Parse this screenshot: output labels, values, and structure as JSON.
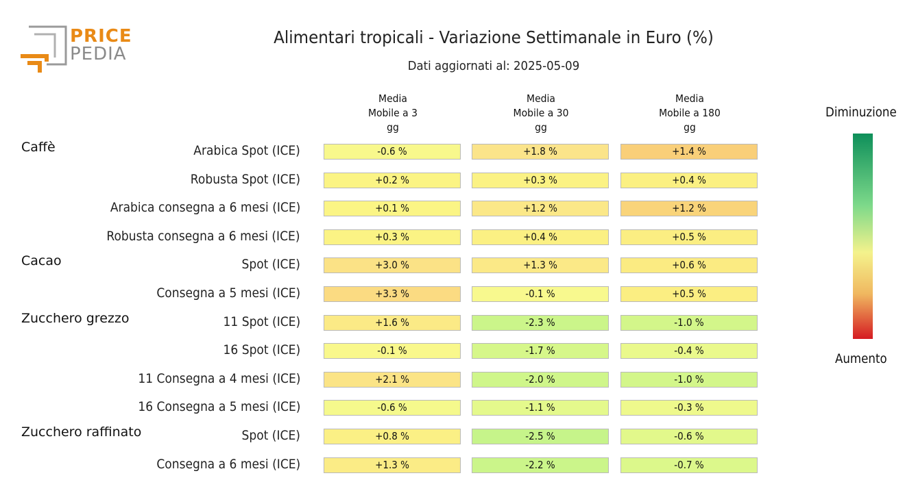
{
  "logo": {
    "line1": "PRICE",
    "line2": "PEDIA"
  },
  "chart_data": {
    "type": "table",
    "title": "Alimentari tropicali - Variazione Settimanale in Euro (%)",
    "subtitle": "Dati aggiornati al: 2025-05-09",
    "columns": [
      "Media\nMobile a 3\ngg",
      "Media\nMobile a 30\ngg",
      "Media\nMobile a 180\ngg"
    ],
    "groups": [
      {
        "name": "Caffè",
        "rows": [
          {
            "label": "Arabica Spot (ICE)",
            "values": [
              "-0.6 %",
              "+1.8 %",
              "+1.4 %"
            ],
            "colors": [
              "#f8f88c",
              "#fbe48a",
              "#f9cf79"
            ]
          },
          {
            "label": "Robusta Spot (ICE)",
            "values": [
              "+0.2 %",
              "+0.3 %",
              "+0.4 %"
            ],
            "colors": [
              "#fbf484",
              "#fbf284",
              "#fbf082"
            ]
          },
          {
            "label": "Arabica consegna a 6 mesi (ICE)",
            "values": [
              "+0.1 %",
              "+1.2 %",
              "+1.2 %"
            ],
            "colors": [
              "#fbf585",
              "#fbe888",
              "#f9d47a"
            ]
          },
          {
            "label": "Robusta consegna a 6 mesi (ICE)",
            "values": [
              "+0.3 %",
              "+0.4 %",
              "+0.5 %"
            ],
            "colors": [
              "#fbf384",
              "#fbf083",
              "#fbee82"
            ]
          }
        ]
      },
      {
        "name": "Cacao",
        "rows": [
          {
            "label": "Spot (ICE)",
            "values": [
              "+3.0 %",
              "+1.3 %",
              "+0.6 %"
            ],
            "colors": [
              "#fbe286",
              "#fbe987",
              "#fbeb82"
            ]
          },
          {
            "label": "Consegna a 5 mesi (ICE)",
            "values": [
              "+3.3 %",
              "-0.1 %",
              "+0.5 %"
            ],
            "colors": [
              "#fbdb82",
              "#f8f98e",
              "#fbee82"
            ]
          }
        ]
      },
      {
        "name": "Zucchero grezzo",
        "rows": [
          {
            "label": "11 Spot (ICE)",
            "values": [
              "+1.6 %",
              "-2.3 %",
              "-1.0 %"
            ],
            "colors": [
              "#fbea86",
              "#cbf58a",
              "#d3f68a"
            ]
          },
          {
            "label": "16 Spot (ICE)",
            "values": [
              "-0.1 %",
              "-1.7 %",
              "-0.4 %"
            ],
            "colors": [
              "#f9f88c",
              "#d6f78a",
              "#eaf98c"
            ]
          },
          {
            "label": "11 Consegna a 4 mesi (ICE)",
            "values": [
              "+2.1 %",
              "-2.0 %",
              "-1.0 %"
            ],
            "colors": [
              "#fbe486",
              "#cff68a",
              "#d3f68a"
            ]
          },
          {
            "label": "16 Consegna a 5 mesi (ICE)",
            "values": [
              "-0.6 %",
              "-1.1 %",
              "-0.3 %"
            ],
            "colors": [
              "#f5f98c",
              "#e4f98c",
              "#eef98c"
            ]
          }
        ]
      },
      {
        "name": "Zucchero raffinato",
        "rows": [
          {
            "label": "Spot (ICE)",
            "values": [
              "+0.8 %",
              "-2.5 %",
              "-0.6 %"
            ],
            "colors": [
              "#fbf085",
              "#c6f48a",
              "#e2f88b"
            ]
          },
          {
            "label": "Consegna a 6 mesi (ICE)",
            "values": [
              "+1.3 %",
              "-2.2 %",
              "-0.7 %"
            ],
            "colors": [
              "#fbec86",
              "#cbf58a",
              "#dcf88b"
            ]
          }
        ]
      }
    ],
    "legend": {
      "high_label": "Diminuzione",
      "low_label": "Aumento"
    }
  }
}
